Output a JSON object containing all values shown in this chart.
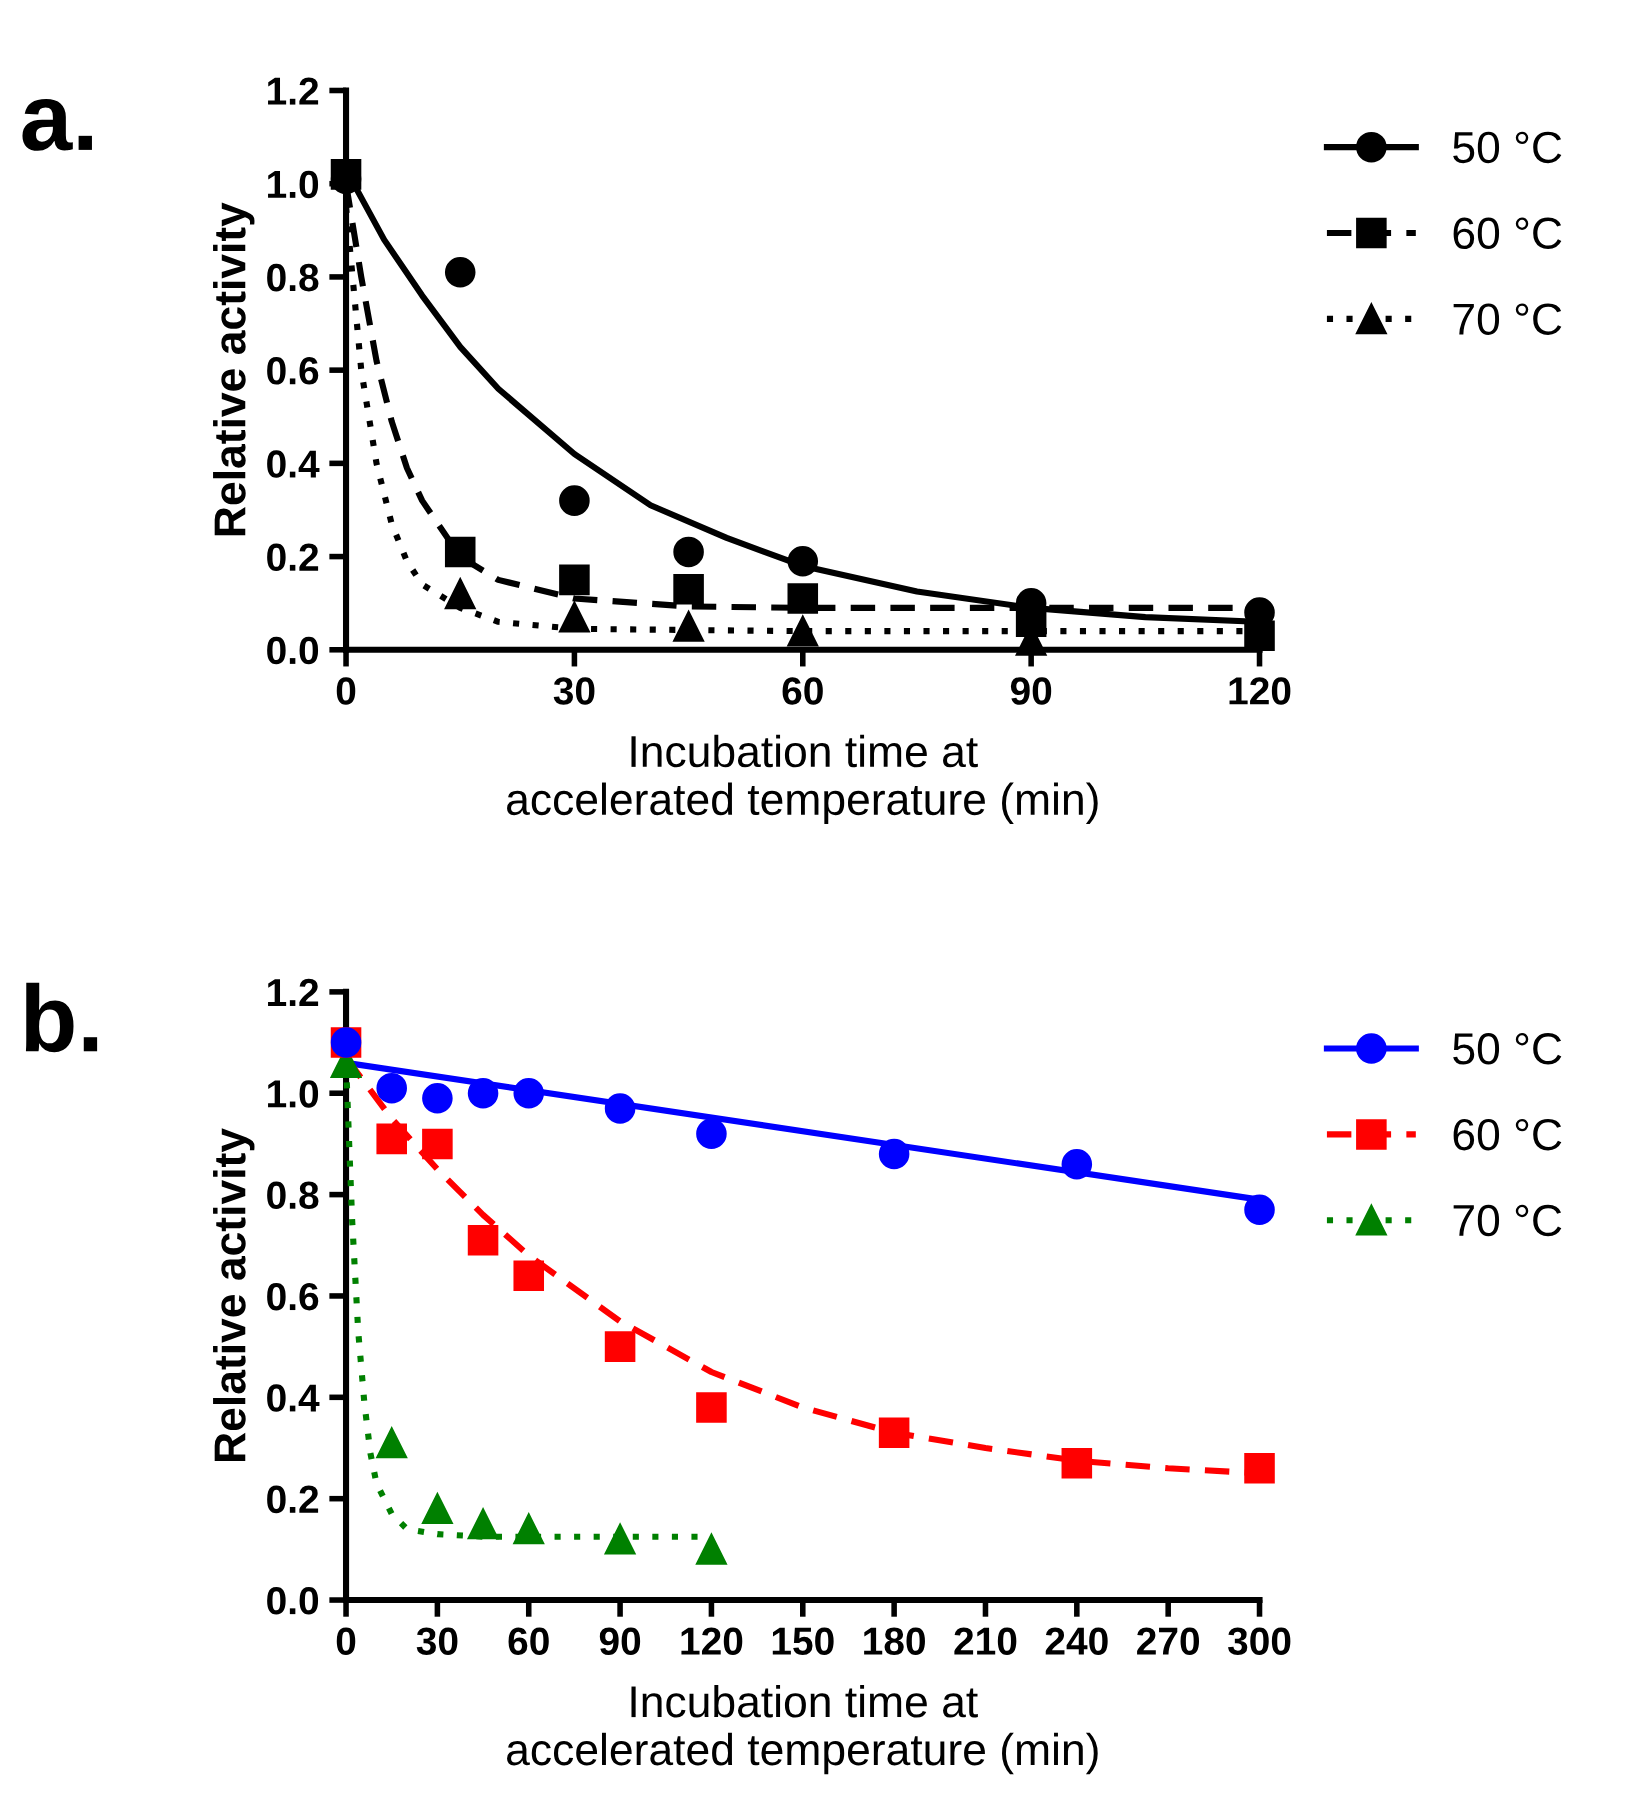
{
  "chart_data": [
    {
      "type": "scatter",
      "title": "a.",
      "xlabel": "Incubation time at\naccelerated temperature (min)",
      "ylabel": "Relative activity",
      "xlim": [
        0,
        120
      ],
      "xticks": [
        0,
        30,
        60,
        90,
        120
      ],
      "ylim": [
        0,
        1.2
      ],
      "yticks": [
        {
          "value": 0,
          "label": "0.0"
        },
        {
          "value": 0.2,
          "label": "0.2"
        },
        {
          "value": 0.4,
          "label": "0.4"
        },
        {
          "value": 0.6,
          "label": "0.6"
        },
        {
          "value": 0.8,
          "label": "0.8"
        },
        {
          "value": 1.0,
          "label": "1.0"
        },
        {
          "value": 1.2,
          "label": "1.2"
        }
      ],
      "grid": false,
      "legend": "top right",
      "series": [
        {
          "name": "50 °C",
          "color": "#000000",
          "marker": "circle",
          "x": [
            0,
            15,
            30,
            45,
            60,
            90,
            120
          ],
          "values": [
            1.01,
            0.81,
            0.32,
            0.21,
            0.19,
            0.1,
            0.08
          ]
        },
        {
          "name": "60 °C",
          "color": "#000000",
          "marker": "square",
          "x": [
            0,
            15,
            30,
            45,
            60,
            90,
            120
          ],
          "values": [
            1.02,
            0.21,
            0.15,
            0.13,
            0.11,
            0.06,
            0.03
          ]
        },
        {
          "name": "70 °C",
          "color": "#000000",
          "marker": "triangle",
          "x": [
            15,
            30,
            45,
            60,
            90
          ],
          "values": [
            0.12,
            0.07,
            0.05,
            0.04,
            0.02
          ]
        },
        {
          "type": "line",
          "color": "#000000",
          "line_style": "solid",
          "x": [
            0,
            5,
            10,
            15,
            20,
            30,
            40,
            50,
            60,
            75,
            90,
            105,
            120
          ],
          "values": [
            1.03,
            0.88,
            0.76,
            0.65,
            0.56,
            0.42,
            0.31,
            0.24,
            0.18,
            0.125,
            0.09,
            0.07,
            0.06
          ]
        },
        {
          "type": "line",
          "color": "#000000",
          "line_style": "dashed",
          "x": [
            0,
            2,
            4,
            6,
            8,
            10,
            15,
            20,
            30,
            45,
            60,
            120
          ],
          "values": [
            1.0,
            0.8,
            0.62,
            0.49,
            0.39,
            0.32,
            0.2,
            0.15,
            0.11,
            0.093,
            0.09,
            0.09
          ]
        },
        {
          "type": "line",
          "color": "#000000",
          "line_style": "dotted",
          "x": [
            0,
            2,
            4,
            6,
            8,
            10,
            15,
            20,
            30,
            60,
            120
          ],
          "values": [
            0.95,
            0.6,
            0.4,
            0.27,
            0.19,
            0.14,
            0.09,
            0.06,
            0.045,
            0.04,
            0.04
          ]
        }
      ]
    },
    {
      "type": "scatter",
      "title": "b.",
      "xlabel": "Incubation time at\naccelerated temperature (min)",
      "ylabel": "Relative activity",
      "xlim": [
        0,
        300
      ],
      "xticks": [
        0,
        30,
        60,
        90,
        120,
        150,
        180,
        210,
        240,
        270,
        300
      ],
      "ylim": [
        0,
        1.2
      ],
      "yticks": [
        {
          "value": 0,
          "label": "0.0"
        },
        {
          "value": 0.2,
          "label": "0.2"
        },
        {
          "value": 0.4,
          "label": "0.4"
        },
        {
          "value": 0.6,
          "label": "0.6"
        },
        {
          "value": 0.8,
          "label": "0.8"
        },
        {
          "value": 1.0,
          "label": "1.0"
        },
        {
          "value": 1.2,
          "label": "1.2"
        }
      ],
      "grid": false,
      "legend": "top right",
      "series": [
        {
          "name": "50 °C",
          "color": "#0000ff",
          "marker": "circle",
          "x": [
            0,
            15,
            30,
            45,
            60,
            90,
            120,
            180,
            240,
            300
          ],
          "values": [
            1.1,
            1.01,
            0.99,
            1.0,
            1.0,
            0.97,
            0.92,
            0.88,
            0.86,
            0.77
          ]
        },
        {
          "name": "60 °C",
          "color": "#ff0000",
          "marker": "square",
          "x": [
            0,
            15,
            30,
            45,
            60,
            90,
            120,
            180,
            240,
            300
          ],
          "values": [
            1.1,
            0.91,
            0.9,
            0.71,
            0.64,
            0.5,
            0.38,
            0.33,
            0.27,
            0.26
          ]
        },
        {
          "name": "70 °C",
          "color": "#008000",
          "marker": "triangle",
          "x": [
            0,
            15,
            30,
            45,
            60,
            90,
            120
          ],
          "values": [
            1.06,
            0.31,
            0.18,
            0.15,
            0.14,
            0.12,
            0.1
          ]
        },
        {
          "type": "line",
          "color": "#0000ff",
          "line_style": "solid",
          "x": [
            0,
            300
          ],
          "values": [
            1.06,
            0.79
          ]
        },
        {
          "type": "line",
          "color": "#ff0000",
          "line_style": "dashed",
          "x": [
            0,
            15,
            30,
            45,
            60,
            90,
            120,
            150,
            180,
            210,
            240,
            270,
            300
          ],
          "values": [
            1.07,
            0.95,
            0.85,
            0.76,
            0.68,
            0.55,
            0.45,
            0.38,
            0.33,
            0.3,
            0.275,
            0.26,
            0.25
          ]
        },
        {
          "type": "line",
          "color": "#008000",
          "line_style": "dotted",
          "x": [
            0,
            2,
            4,
            6,
            8,
            10,
            15,
            20,
            30,
            45,
            60,
            90,
            120
          ],
          "values": [
            1.06,
            0.75,
            0.53,
            0.39,
            0.29,
            0.23,
            0.17,
            0.14,
            0.13,
            0.125,
            0.125,
            0.125,
            0.125
          ]
        }
      ]
    }
  ]
}
